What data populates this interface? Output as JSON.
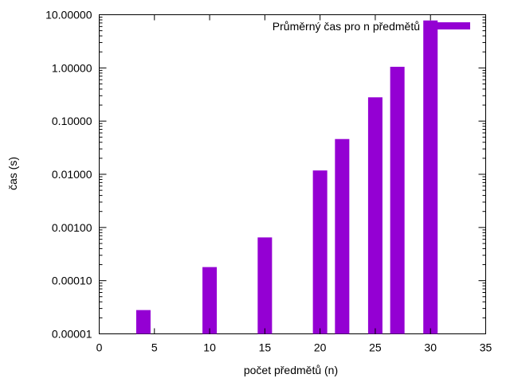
{
  "chart_data": {
    "type": "bar",
    "xlabel": "počet předmětů (n)",
    "ylabel": "čas (s)",
    "xlim": [
      0,
      35
    ],
    "ylim": [
      1e-05,
      10
    ],
    "y_scale": "log",
    "x_ticks": [
      "0",
      "5",
      "10",
      "15",
      "20",
      "25",
      "30",
      "35"
    ],
    "y_ticks": [
      "0.00001",
      "0.00010",
      "0.00100",
      "0.01000",
      "0.10000",
      "1.00000",
      "10.00000"
    ],
    "grid": false,
    "legend_position": "top-right",
    "series": [
      {
        "name": "Průměrný čas pro n předmětů",
        "color": "#9400d3",
        "x": [
          4,
          10,
          15,
          20,
          22,
          25,
          27,
          30
        ],
        "values": [
          2.8e-05,
          0.00018,
          0.00065,
          0.0118,
          0.046,
          0.28,
          1.05,
          7.8
        ]
      }
    ]
  }
}
